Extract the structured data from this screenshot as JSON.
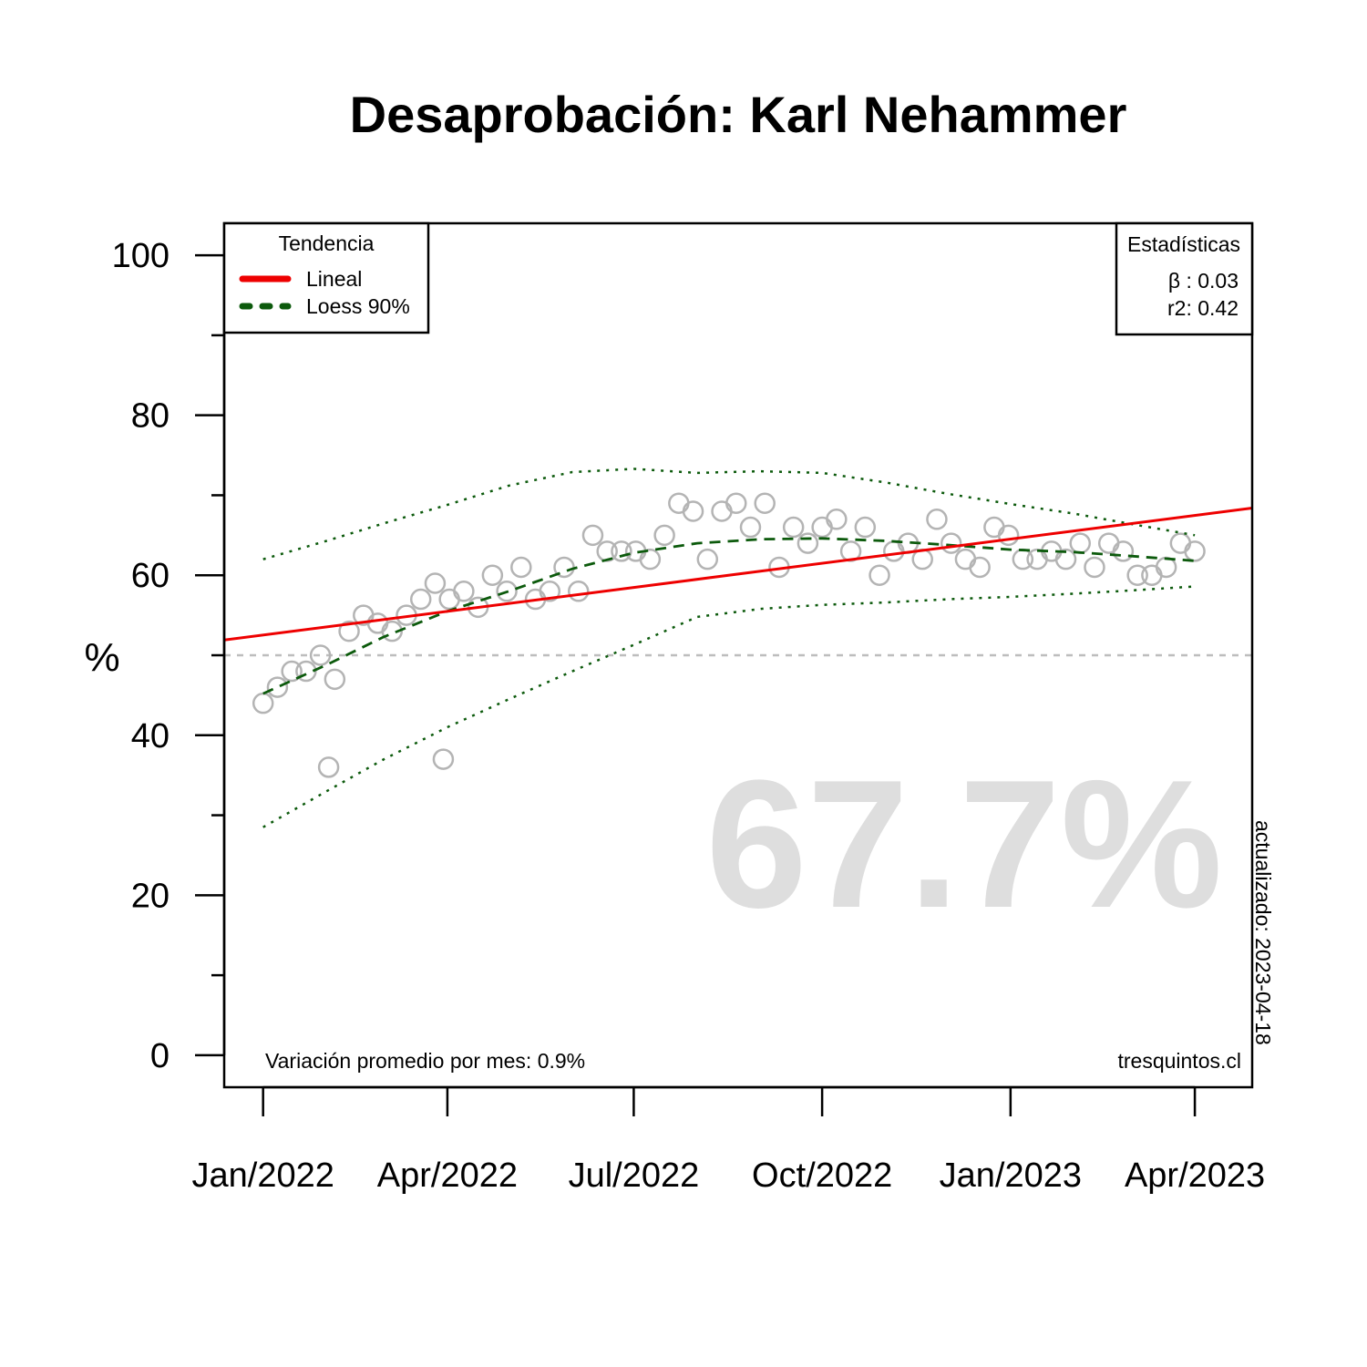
{
  "chart_data": {
    "type": "scatter",
    "title": "Desaprobación: Karl Nehammer",
    "ylabel": "%",
    "xlabel": "",
    "ylim": [
      -4,
      104
    ],
    "xlim": [
      "2021-12-13",
      "2023-04-29"
    ],
    "y_ticks": [
      0,
      20,
      40,
      60,
      80,
      100
    ],
    "y_minor_ticks": [
      10,
      30,
      50,
      70,
      90
    ],
    "x_ticks": [
      {
        "date": "2022-01-01",
        "label": "Jan/2022"
      },
      {
        "date": "2022-04-01",
        "label": "Apr/2022"
      },
      {
        "date": "2022-07-01",
        "label": "Jul/2022"
      },
      {
        "date": "2022-10-01",
        "label": "Oct/2022"
      },
      {
        "date": "2023-01-01",
        "label": "Jan/2023"
      },
      {
        "date": "2023-04-01",
        "label": "Apr/2023"
      }
    ],
    "reference_line": 50,
    "points": [
      {
        "x": "2022-01-01",
        "y": 44
      },
      {
        "x": "2022-01-08",
        "y": 46
      },
      {
        "x": "2022-01-15",
        "y": 48
      },
      {
        "x": "2022-01-22",
        "y": 48
      },
      {
        "x": "2022-01-29",
        "y": 50
      },
      {
        "x": "2022-02-02",
        "y": 36
      },
      {
        "x": "2022-02-05",
        "y": 47
      },
      {
        "x": "2022-02-12",
        "y": 53
      },
      {
        "x": "2022-02-19",
        "y": 55
      },
      {
        "x": "2022-02-26",
        "y": 54
      },
      {
        "x": "2022-03-05",
        "y": 53
      },
      {
        "x": "2022-03-12",
        "y": 55
      },
      {
        "x": "2022-03-19",
        "y": 57
      },
      {
        "x": "2022-03-26",
        "y": 59
      },
      {
        "x": "2022-03-30",
        "y": 37
      },
      {
        "x": "2022-04-02",
        "y": 57
      },
      {
        "x": "2022-04-09",
        "y": 58
      },
      {
        "x": "2022-04-16",
        "y": 56
      },
      {
        "x": "2022-04-23",
        "y": 60
      },
      {
        "x": "2022-04-30",
        "y": 58
      },
      {
        "x": "2022-05-07",
        "y": 61
      },
      {
        "x": "2022-05-14",
        "y": 57
      },
      {
        "x": "2022-05-21",
        "y": 58
      },
      {
        "x": "2022-05-28",
        "y": 61
      },
      {
        "x": "2022-06-04",
        "y": 58
      },
      {
        "x": "2022-06-11",
        "y": 65
      },
      {
        "x": "2022-06-18",
        "y": 63
      },
      {
        "x": "2022-06-25",
        "y": 63
      },
      {
        "x": "2022-07-02",
        "y": 63
      },
      {
        "x": "2022-07-09",
        "y": 62
      },
      {
        "x": "2022-07-16",
        "y": 65
      },
      {
        "x": "2022-07-23",
        "y": 69
      },
      {
        "x": "2022-07-30",
        "y": 68
      },
      {
        "x": "2022-08-06",
        "y": 62
      },
      {
        "x": "2022-08-13",
        "y": 68
      },
      {
        "x": "2022-08-20",
        "y": 69
      },
      {
        "x": "2022-08-27",
        "y": 66
      },
      {
        "x": "2022-09-03",
        "y": 69
      },
      {
        "x": "2022-09-10",
        "y": 61
      },
      {
        "x": "2022-09-17",
        "y": 66
      },
      {
        "x": "2022-09-24",
        "y": 64
      },
      {
        "x": "2022-10-01",
        "y": 66
      },
      {
        "x": "2022-10-08",
        "y": 67
      },
      {
        "x": "2022-10-15",
        "y": 63
      },
      {
        "x": "2022-10-22",
        "y": 66
      },
      {
        "x": "2022-10-29",
        "y": 60
      },
      {
        "x": "2022-11-05",
        "y": 63
      },
      {
        "x": "2022-11-12",
        "y": 64
      },
      {
        "x": "2022-11-19",
        "y": 62
      },
      {
        "x": "2022-11-26",
        "y": 67
      },
      {
        "x": "2022-12-03",
        "y": 64
      },
      {
        "x": "2022-12-10",
        "y": 62
      },
      {
        "x": "2022-12-17",
        "y": 61
      },
      {
        "x": "2022-12-24",
        "y": 66
      },
      {
        "x": "2022-12-31",
        "y": 65
      },
      {
        "x": "2023-01-07",
        "y": 62
      },
      {
        "x": "2023-01-14",
        "y": 62
      },
      {
        "x": "2023-01-21",
        "y": 63
      },
      {
        "x": "2023-01-28",
        "y": 62
      },
      {
        "x": "2023-02-04",
        "y": 64
      },
      {
        "x": "2023-02-11",
        "y": 61
      },
      {
        "x": "2023-02-18",
        "y": 64
      },
      {
        "x": "2023-02-25",
        "y": 63
      },
      {
        "x": "2023-03-04",
        "y": 60
      },
      {
        "x": "2023-03-11",
        "y": 60
      },
      {
        "x": "2023-03-18",
        "y": 61
      },
      {
        "x": "2023-03-25",
        "y": 64
      },
      {
        "x": "2023-04-01",
        "y": 63
      }
    ],
    "linear_trend": [
      {
        "x": "2021-12-13",
        "y": 51.9
      },
      {
        "x": "2023-04-29",
        "y": 68.4
      }
    ],
    "loess": [
      {
        "x": "2022-01-01",
        "y": 45.2
      },
      {
        "x": "2022-02-01",
        "y": 48.8
      },
      {
        "x": "2022-03-01",
        "y": 52.3
      },
      {
        "x": "2022-04-01",
        "y": 55.5
      },
      {
        "x": "2022-05-01",
        "y": 58.0
      },
      {
        "x": "2022-06-01",
        "y": 60.8
      },
      {
        "x": "2022-07-01",
        "y": 62.8
      },
      {
        "x": "2022-08-01",
        "y": 64.0
      },
      {
        "x": "2022-09-01",
        "y": 64.5
      },
      {
        "x": "2022-10-01",
        "y": 64.6
      },
      {
        "x": "2022-11-01",
        "y": 64.3
      },
      {
        "x": "2022-12-01",
        "y": 63.8
      },
      {
        "x": "2023-01-01",
        "y": 63.2
      },
      {
        "x": "2023-02-01",
        "y": 62.9
      },
      {
        "x": "2023-03-01",
        "y": 62.4
      },
      {
        "x": "2023-04-01",
        "y": 61.8
      }
    ],
    "loess_upper": [
      {
        "x": "2022-01-01",
        "y": 62.0
      },
      {
        "x": "2022-02-01",
        "y": 64.3
      },
      {
        "x": "2022-03-01",
        "y": 66.5
      },
      {
        "x": "2022-04-01",
        "y": 68.8
      },
      {
        "x": "2022-05-01",
        "y": 71.2
      },
      {
        "x": "2022-06-01",
        "y": 72.9
      },
      {
        "x": "2022-07-01",
        "y": 73.3
      },
      {
        "x": "2022-08-01",
        "y": 72.8
      },
      {
        "x": "2022-09-01",
        "y": 73.0
      },
      {
        "x": "2022-10-01",
        "y": 72.8
      },
      {
        "x": "2022-11-01",
        "y": 71.6
      },
      {
        "x": "2022-12-01",
        "y": 70.2
      },
      {
        "x": "2023-01-01",
        "y": 68.9
      },
      {
        "x": "2023-02-01",
        "y": 67.7
      },
      {
        "x": "2023-03-01",
        "y": 66.4
      },
      {
        "x": "2023-04-01",
        "y": 65.0
      }
    ],
    "loess_lower": [
      {
        "x": "2022-01-01",
        "y": 28.5
      },
      {
        "x": "2022-02-01",
        "y": 33.0
      },
      {
        "x": "2022-03-01",
        "y": 37.0
      },
      {
        "x": "2022-04-01",
        "y": 41.0
      },
      {
        "x": "2022-05-01",
        "y": 44.5
      },
      {
        "x": "2022-06-01",
        "y": 48.0
      },
      {
        "x": "2022-07-01",
        "y": 51.3
      },
      {
        "x": "2022-08-01",
        "y": 54.8
      },
      {
        "x": "2022-09-01",
        "y": 55.8
      },
      {
        "x": "2022-10-01",
        "y": 56.3
      },
      {
        "x": "2022-11-01",
        "y": 56.6
      },
      {
        "x": "2022-12-01",
        "y": 57.0
      },
      {
        "x": "2023-01-01",
        "y": 57.3
      },
      {
        "x": "2023-02-01",
        "y": 57.7
      },
      {
        "x": "2023-03-01",
        "y": 58.1
      },
      {
        "x": "2023-04-01",
        "y": 58.6
      }
    ],
    "legend_tendencia": {
      "title": "Tendencia",
      "entries": [
        {
          "label": "Lineal",
          "color": "#ee0000",
          "style": "solid"
        },
        {
          "label": "Loess 90%",
          "color": "#0c5a0c",
          "style": "dashed"
        }
      ],
      "placement": "top-left"
    },
    "legend_stats": {
      "title": "Estadísticas",
      "lines": [
        "β : 0.03",
        "r2: 0.42"
      ],
      "placement": "top-right"
    },
    "big_value": "67.7%",
    "footnote_left": "Variación promedio por mes: 0.9%",
    "footnote_right": "tresquintos.cl",
    "side_note": "actualizado: 2023-04-18",
    "colors": {
      "points": "#b4b4b4",
      "linear": "#ee0000",
      "loess": "#0c5a0c",
      "reference": "#bdbdbd",
      "big_value": "#dedede"
    }
  }
}
